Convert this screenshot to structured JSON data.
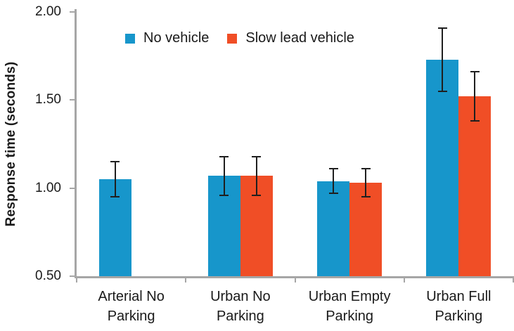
{
  "chart_data": {
    "type": "bar",
    "title": "",
    "ylabel": "Response time (seconds)",
    "xlabel": "",
    "categories": [
      "Arterial No Parking",
      "Urban No Parking",
      "Urban Empty Parking",
      "Urban Full Parking"
    ],
    "series": [
      {
        "name": "No vehicle",
        "color": "#1796CB",
        "values": [
          1.05,
          1.07,
          1.04,
          1.73
        ],
        "errors": [
          0.1,
          0.11,
          0.07,
          0.18
        ]
      },
      {
        "name": "Slow lead vehicle",
        "color": "#F04E26",
        "values": [
          null,
          1.07,
          1.03,
          1.52
        ],
        "errors": [
          null,
          0.11,
          0.08,
          0.14
        ]
      }
    ],
    "ylim": [
      0.5,
      2.0
    ],
    "yticks": [
      {
        "value": 0.5,
        "label": "0.50"
      },
      {
        "value": 1.0,
        "label": "1.00"
      },
      {
        "value": 1.5,
        "label": "1.50"
      },
      {
        "value": 2.0,
        "label": "2.00"
      }
    ],
    "legend_position": "top",
    "grid": false,
    "error_bars": true,
    "colors": {
      "axis": "#A6A6A6",
      "error_bar": "#1F1F1F",
      "text": "#1A1A1A",
      "background": "#FFFFFF"
    }
  }
}
